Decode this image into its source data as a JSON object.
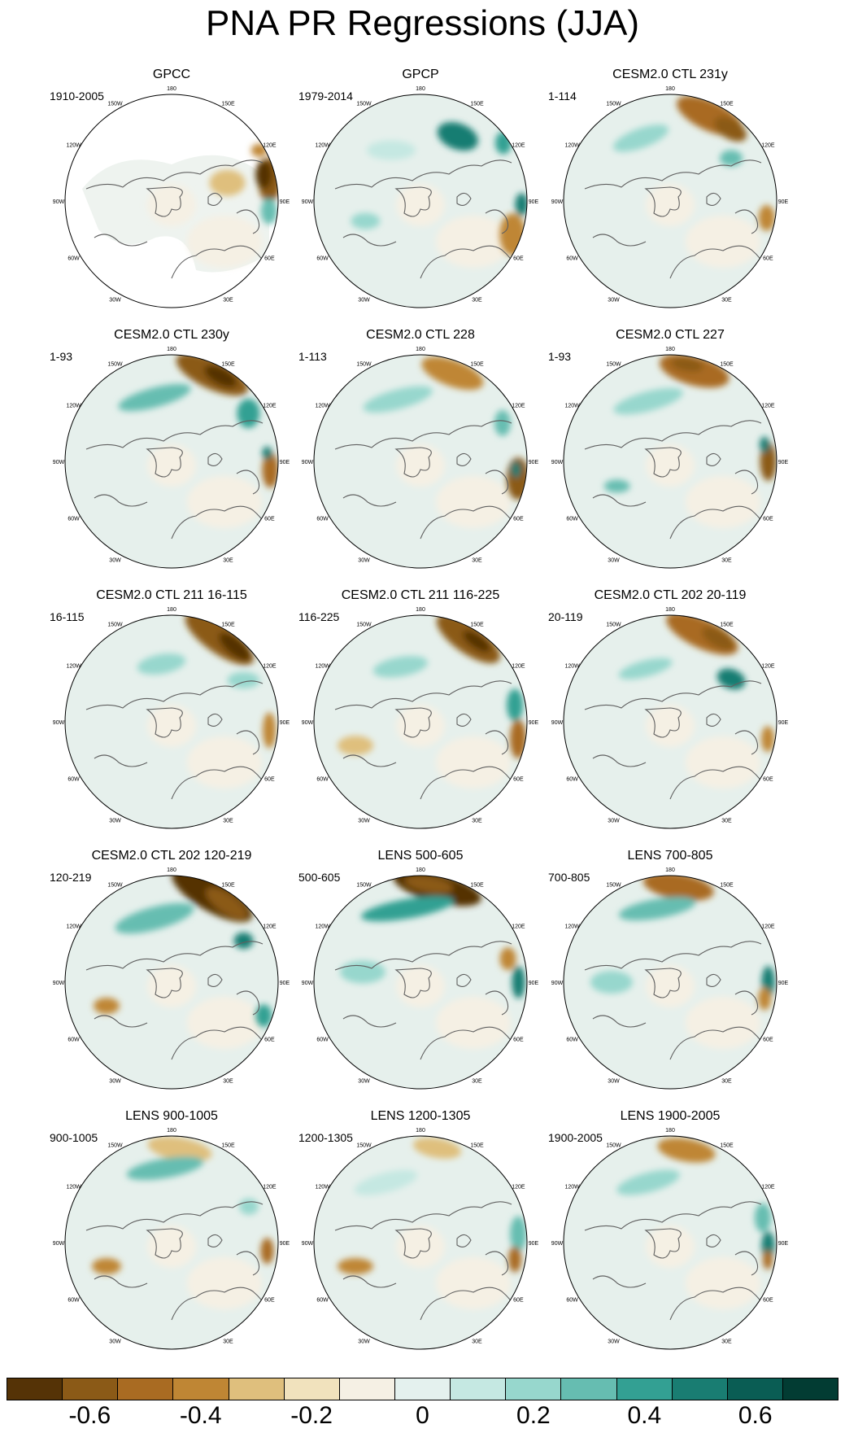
{
  "title": "PNA PR Regressions (JJA)",
  "longitude_labels": [
    "180",
    "150E",
    "120E",
    "90E",
    "60E",
    "30E",
    "0",
    "30W",
    "60W",
    "90W",
    "120W",
    "150W"
  ],
  "panels": [
    {
      "title": "GPCC",
      "period": "1910-2005"
    },
    {
      "title": "GPCP",
      "period": "1979-2014"
    },
    {
      "title": "CESM2.0 CTL 231y",
      "period": "1-114"
    },
    {
      "title": "CESM2.0 CTL 230y",
      "period": "1-93"
    },
    {
      "title": "CESM2.0 CTL 228",
      "period": "1-113"
    },
    {
      "title": "CESM2.0 CTL 227",
      "period": "1-93"
    },
    {
      "title": "CESM2.0 CTL 211 16-115",
      "period": "16-115"
    },
    {
      "title": "CESM2.0 CTL 211 116-225",
      "period": "116-225"
    },
    {
      "title": "CESM2.0 CTL 202 20-119",
      "period": "20-119"
    },
    {
      "title": "CESM2.0 CTL 202 120-219",
      "period": "120-219"
    },
    {
      "title": "LENS 500-605",
      "period": "500-605"
    },
    {
      "title": "LENS 700-805",
      "period": "700-805"
    },
    {
      "title": "LENS 900-1005",
      "period": "900-1005"
    },
    {
      "title": "LENS 1200-1305",
      "period": "1200-1305"
    },
    {
      "title": "LENS 1900-2005",
      "period": "1900-2005"
    }
  ],
  "colorbar": {
    "labels": [
      "-0.6",
      "-0.4",
      "-0.2",
      "0",
      "0.2",
      "0.4",
      "0.6"
    ],
    "colors": [
      "#553306",
      "#8b5a17",
      "#a96b22",
      "#bf8634",
      "#dfbf7d",
      "#f1e2bd",
      "#f5f0e4",
      "#e4f1ee",
      "#c5e8e2",
      "#97d7cd",
      "#66bdb1",
      "#33a093",
      "#197d72",
      "#0a5d54",
      "#023c33"
    ],
    "ocean_tone": "#e6f0ec",
    "land_outline": "#606060"
  }
}
